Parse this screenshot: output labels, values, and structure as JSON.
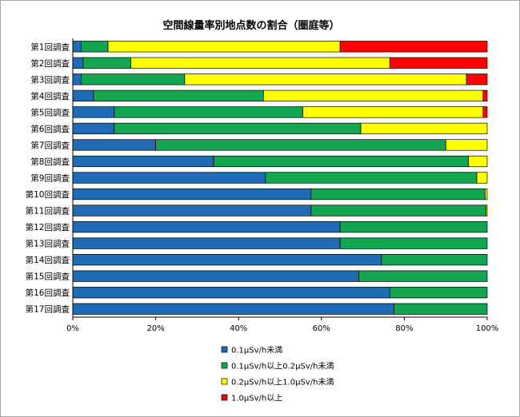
{
  "chart_data": {
    "type": "bar",
    "orientation": "horizontal",
    "stacked": "percent",
    "title": "空間線量率別地点数の割合（圏庭等）",
    "categories": [
      "第1回調査",
      "第2回調査",
      "第3回調査",
      "第4回調査",
      "第5回調査",
      "第6回調査",
      "第7回調査",
      "第8回調査",
      "第9回調査",
      "第10回調査",
      "第11回調査",
      "第12回調査",
      "第13回調査",
      "第14回調査",
      "第15回調査",
      "第16回調査",
      "第17回調査"
    ],
    "xticks": [
      "0%",
      "20%",
      "40%",
      "60%",
      "80%",
      "100%"
    ],
    "xlim": [
      0,
      100
    ],
    "grid": false,
    "legend_position": "bottom",
    "series": [
      {
        "name": "0.1μSv/h未満",
        "color": "#1f6bb5",
        "values": [
          2,
          2.5,
          2,
          5,
          10,
          10,
          20,
          34,
          46.5,
          57.5,
          57.5,
          64.5,
          64.5,
          74.5,
          69,
          76.5,
          77.5
        ]
      },
      {
        "name": "0.1μSv/h以上0.2μSv/h未満",
        "color": "#14a550",
        "values": [
          6.5,
          11.5,
          25,
          41,
          45.5,
          59.5,
          70,
          61.5,
          51,
          42,
          42.2,
          35.5,
          35.5,
          25.5,
          31,
          23.5,
          22.5
        ]
      },
      {
        "name": "0.2μSv/h以上1.0μSv/h未満",
        "color": "#ffff00",
        "values": [
          56,
          62.5,
          68,
          53,
          43.5,
          30.5,
          10,
          4.5,
          2.5,
          0.5,
          0.3,
          0,
          0,
          0,
          0,
          0,
          0
        ]
      },
      {
        "name": "1.0μSv/h以上",
        "color": "#ff0000",
        "values": [
          35.5,
          23.5,
          5,
          1,
          1,
          0,
          0,
          0,
          0,
          0,
          0,
          0,
          0,
          0,
          0,
          0,
          0
        ]
      }
    ]
  }
}
